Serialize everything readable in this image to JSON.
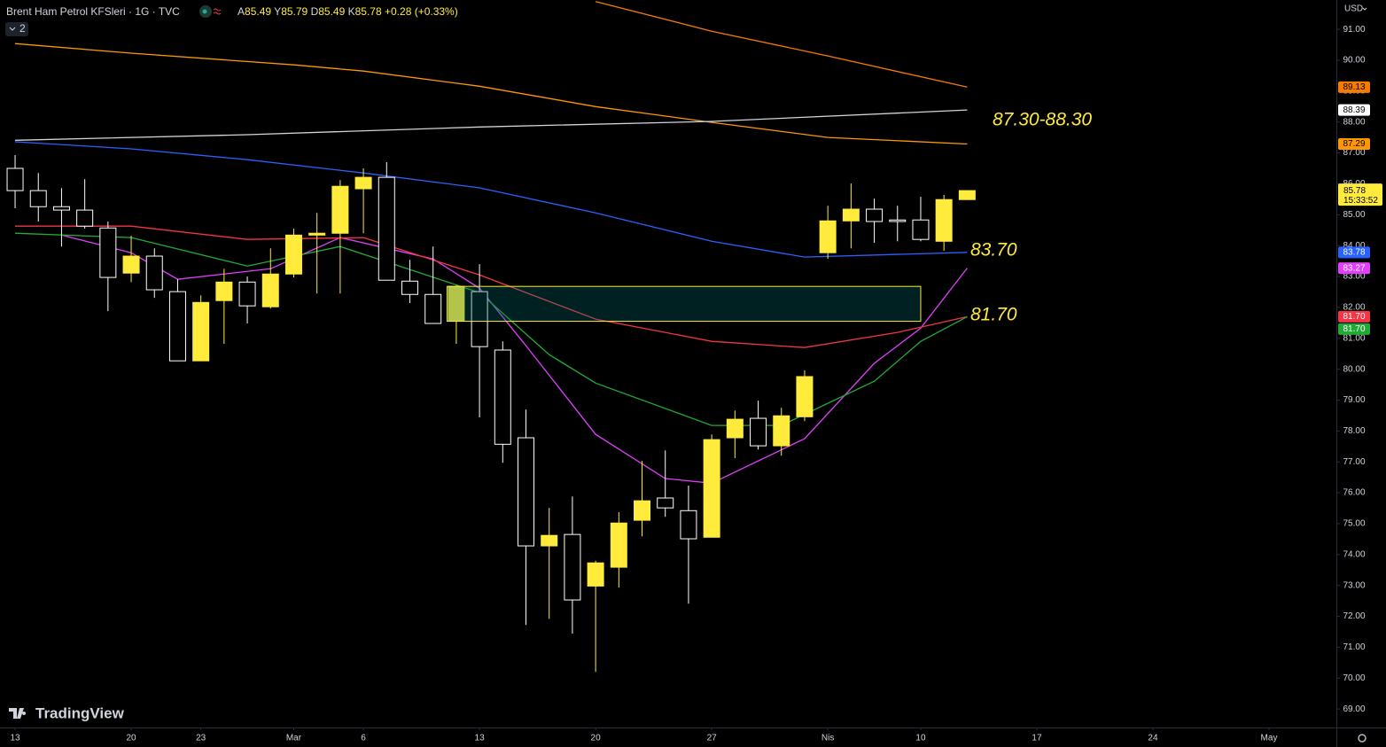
{
  "header": {
    "title": "Brent Ham Petrol KFSleri · 1G · TVC",
    "ohlc": [
      {
        "label": "A",
        "text": "85.49"
      },
      {
        "label": "Y",
        "text": "85.79"
      },
      {
        "label": "D",
        "text": "85.49"
      },
      {
        "label": "K",
        "text": "85.78"
      }
    ],
    "change": "+0.28 (+0.33%)",
    "indicator_count": "2"
  },
  "currency": "USD",
  "countdown": "15:33:52",
  "brand": "TradingView",
  "chart_data": {
    "type": "candlestick",
    "x": [
      0,
      1,
      2,
      3,
      4,
      5,
      6,
      7,
      8,
      9,
      10,
      11,
      12,
      13,
      14,
      15,
      16,
      17,
      18,
      19,
      20,
      21,
      22,
      23,
      24,
      25,
      26,
      27,
      28,
      29,
      30,
      31,
      32,
      33,
      34,
      35,
      36,
      37,
      38,
      39,
      40,
      41
    ],
    "open": [
      86.5,
      85.78,
      85.26,
      85.15,
      84.57,
      83.11,
      83.66,
      82.51,
      80.27,
      82.22,
      82.82,
      82.02,
      83.08,
      84.34,
      84.4,
      85.84,
      86.21,
      82.85,
      82.42,
      81.56,
      82.51,
      80.62,
      77.78,
      74.28,
      74.65,
      72.98,
      73.59,
      75.11,
      75.83,
      75.42,
      74.56,
      77.78,
      78.41,
      77.52,
      78.46,
      83.77,
      84.8,
      85.18,
      84.83,
      84.83,
      84.14,
      85.49
    ],
    "high": [
      86.93,
      86.35,
      85.86,
      86.15,
      84.78,
      84.32,
      83.91,
      82.91,
      82.39,
      83.25,
      83.0,
      83.91,
      84.55,
      85.06,
      86.12,
      86.5,
      86.7,
      83.54,
      83.97,
      82.71,
      83.4,
      80.9,
      78.69,
      75.51,
      75.88,
      73.8,
      75.37,
      77.03,
      77.37,
      76.23,
      77.89,
      78.66,
      78.98,
      78.75,
      79.96,
      85.29,
      86.01,
      85.52,
      85.29,
      85.58,
      85.64,
      85.79
    ],
    "low": [
      85.21,
      84.78,
      83.97,
      84.55,
      81.88,
      82.82,
      82.31,
      80.27,
      80.27,
      80.82,
      81.48,
      81.96,
      82.97,
      82.45,
      82.45,
      84.4,
      82.88,
      82.14,
      81.48,
      80.82,
      78.44,
      76.97,
      71.72,
      71.92,
      71.44,
      70.2,
      72.93,
      74.59,
      75.22,
      72.41,
      74.56,
      77.12,
      77.4,
      77.2,
      78.32,
      83.57,
      83.91,
      84.09,
      84.14,
      84.14,
      83.83,
      85.49
    ],
    "close": [
      85.78,
      85.26,
      85.15,
      84.63,
      82.97,
      83.66,
      82.57,
      80.27,
      82.16,
      82.82,
      82.05,
      83.08,
      84.34,
      84.4,
      85.92,
      86.21,
      82.88,
      82.42,
      81.48,
      82.68,
      80.73,
      77.57,
      74.28,
      74.62,
      72.53,
      73.73,
      75.02,
      75.74,
      75.51,
      74.51,
      77.72,
      78.38,
      77.52,
      78.49,
      79.76,
      84.8,
      85.18,
      84.78,
      84.78,
      84.2,
      85.49,
      85.78
    ],
    "up_color": "#ffeb3b",
    "down_color": "#ffffff",
    "lines": [
      {
        "color": "#f57c00",
        "x": [
          25,
          30,
          35,
          41
        ],
        "values": [
          91.9,
          90.94,
          90.14,
          89.13
        ],
        "last_label": "89.13"
      },
      {
        "color": "#ff9800",
        "x": [
          0,
          5,
          12,
          15,
          20,
          25,
          30,
          35,
          41
        ],
        "values": [
          90.54,
          90.23,
          89.85,
          89.65,
          89.16,
          88.5,
          87.99,
          87.5,
          87.29
        ],
        "last_label": "87.29"
      },
      {
        "color": "#d1d4dc",
        "x": [
          0,
          10,
          20,
          30,
          41
        ],
        "values": [
          87.41,
          87.59,
          87.84,
          88.02,
          88.39
        ],
        "last_label": "88.39"
      },
      {
        "color": "#2962ff",
        "x": [
          0,
          5,
          10,
          15,
          20,
          25,
          30,
          34,
          41
        ],
        "values": [
          87.36,
          87.13,
          86.78,
          86.35,
          85.87,
          85.06,
          84.14,
          83.63,
          83.78
        ],
        "last_label": "83.78"
      },
      {
        "color": "#e040fb",
        "x": [
          2,
          5,
          7,
          11,
          14,
          18,
          20,
          22,
          25,
          28,
          30,
          34,
          37,
          39,
          41
        ],
        "values": [
          84.34,
          83.77,
          82.91,
          83.25,
          84.26,
          83.57,
          82.62,
          80.76,
          77.89,
          76.46,
          76.31,
          77.75,
          80.19,
          81.33,
          83.27
        ],
        "last_label": "83.27"
      },
      {
        "color": "#f23645",
        "x": [
          0,
          5,
          10,
          15,
          20,
          25,
          30,
          34,
          38,
          41
        ],
        "values": [
          84.63,
          84.63,
          84.2,
          84.26,
          83.05,
          81.62,
          80.9,
          80.7,
          81.19,
          81.7
        ],
        "last_label": "81.70"
      },
      {
        "color": "#22ab34",
        "x": [
          0,
          5,
          10,
          14,
          20,
          23,
          25,
          30,
          33,
          37,
          39,
          41
        ],
        "values": [
          84.4,
          84.26,
          83.34,
          83.97,
          82.48,
          80.47,
          79.55,
          78.18,
          78.18,
          79.61,
          80.9,
          81.7
        ],
        "last_label": "81.70"
      }
    ],
    "zone": {
      "x": [
        18.6,
        39
      ],
      "y": [
        81.55,
        82.68
      ]
    },
    "annotations": [
      "87.30-88.30",
      "83.70",
      "81.70"
    ],
    "xlim": [
      -0.65,
      56.9
    ],
    "ylim": [
      68.43,
      91.95
    ],
    "xticks": [
      {
        "value": 0,
        "label": "13"
      },
      {
        "value": 5,
        "label": "20"
      },
      {
        "value": 8,
        "label": "23"
      },
      {
        "value": 12,
        "label": "Mar"
      },
      {
        "value": 15,
        "label": "6"
      },
      {
        "value": 20,
        "label": "13"
      },
      {
        "value": 25,
        "label": "20"
      },
      {
        "value": 30,
        "label": "27"
      },
      {
        "value": 35,
        "label": "Nis"
      },
      {
        "value": 39,
        "label": "10"
      },
      {
        "value": 44,
        "label": "17"
      },
      {
        "value": 49,
        "label": "24"
      },
      {
        "value": 54,
        "label": "May"
      }
    ],
    "yticks": [
      {
        "value": 69,
        "label": "69.00"
      },
      {
        "value": 70,
        "label": "70.00"
      },
      {
        "value": 71,
        "label": "71.00"
      },
      {
        "value": 72,
        "label": "72.00"
      },
      {
        "value": 73,
        "label": "73.00"
      },
      {
        "value": 74,
        "label": "74.00"
      },
      {
        "value": 75,
        "label": "75.00"
      },
      {
        "value": 76,
        "label": "76.00"
      },
      {
        "value": 77,
        "label": "77.00"
      },
      {
        "value": 78,
        "label": "78.00"
      },
      {
        "value": 79,
        "label": "79.00"
      },
      {
        "value": 80,
        "label": "80.00"
      },
      {
        "value": 81,
        "label": "81.00"
      },
      {
        "value": 82,
        "label": "82.00"
      },
      {
        "value": 83,
        "label": "83.00"
      },
      {
        "value": 84,
        "label": "84.00"
      },
      {
        "value": 85,
        "label": "85.00"
      },
      {
        "value": 86,
        "label": "86.00"
      },
      {
        "value": 87,
        "label": "87.00"
      },
      {
        "value": 88,
        "label": "88.00"
      },
      {
        "value": 89,
        "label": "89.00"
      },
      {
        "value": 90,
        "label": "90.00"
      },
      {
        "value": 91,
        "label": "91.00"
      }
    ]
  }
}
